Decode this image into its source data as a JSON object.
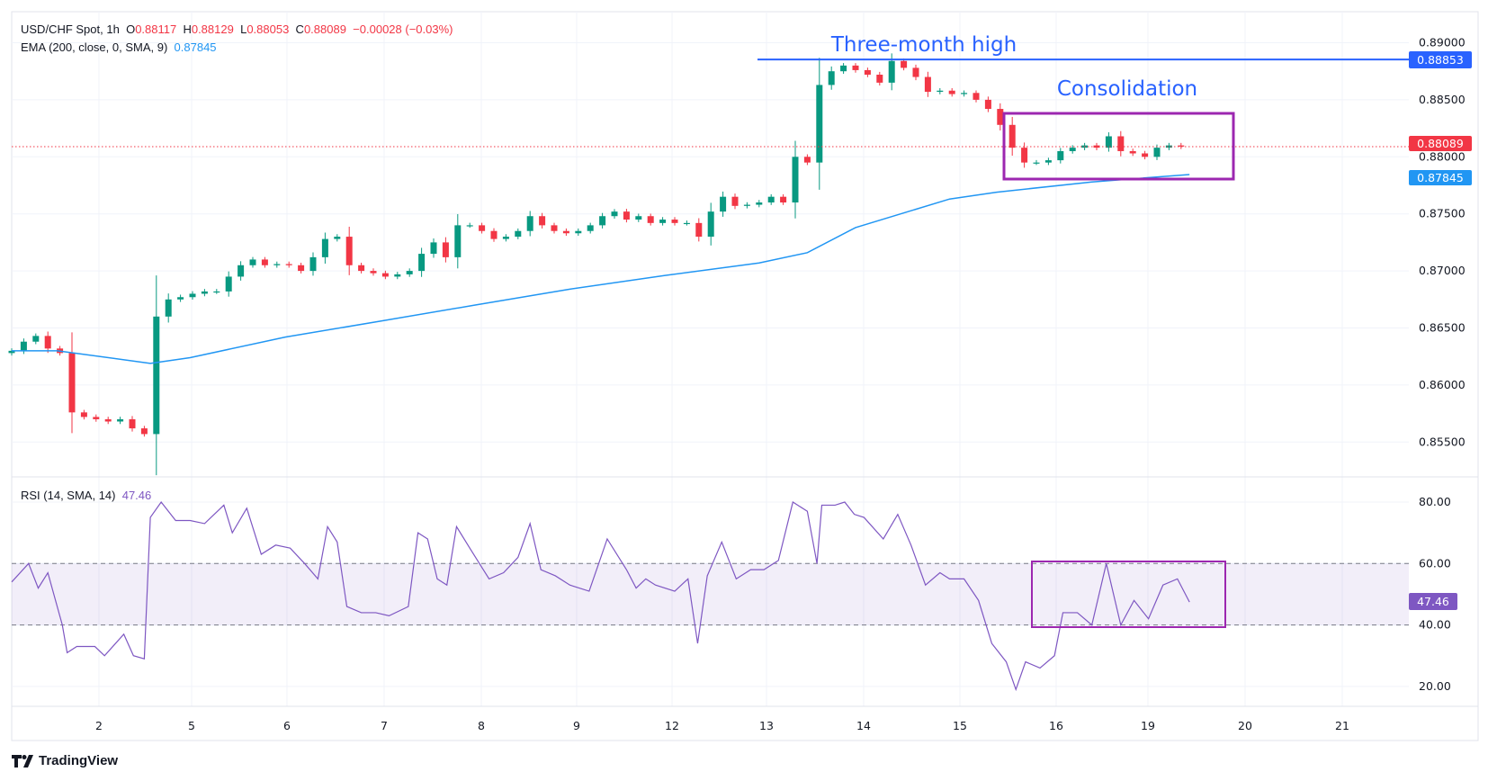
{
  "header": {
    "symbol": "USD/CHF Spot, 1h",
    "o_label": "O",
    "o": "0.88117",
    "h_label": "H",
    "h": "0.88129",
    "l_label": "L",
    "l": "0.88053",
    "c_label": "C",
    "c": "0.88089",
    "change": "−0.00028 (−0.03%)",
    "ema_label": "EMA (200, close, 0, SMA, 9)",
    "ema_value": "0.87845",
    "rsi_label": "RSI (14, SMA, 14)",
    "rsi_value": "47.46"
  },
  "annotations": {
    "high_text": "Three-month high",
    "consolidation_text": "Consolidation",
    "high_level": 0.88853
  },
  "tags": {
    "high": "0.88853",
    "last": "0.88089",
    "ema": "0.87845",
    "rsi": "47.46"
  },
  "colors": {
    "up": "#089981",
    "down": "#f23645",
    "ema": "#2196f3",
    "rsi": "#7e57c2",
    "annotation": "#2962ff",
    "box": "#9c27b0"
  },
  "branding": "TradingView",
  "chart_data": {
    "type": "candlestick",
    "title": "USD/CHF Spot, 1h",
    "x_tick_labels": [
      "2",
      "5",
      "6",
      "7",
      "8",
      "9",
      "12",
      "13",
      "14",
      "15",
      "16",
      "19",
      "20",
      "21"
    ],
    "price_ticks": [
      "0.89000",
      "0.88500",
      "0.88000",
      "0.87500",
      "0.87000",
      "0.86500",
      "0.86000",
      "0.85500"
    ],
    "price_ticks_values": [
      0.89,
      0.885,
      0.88,
      0.875,
      0.87,
      0.865,
      0.86,
      0.855
    ],
    "ylim": [
      0.8523,
      0.8922
    ],
    "first_open": 0.8628,
    "closes": [
      0.863,
      0.8638,
      0.8643,
      0.8632,
      0.8628,
      0.8576,
      0.8572,
      0.857,
      0.8568,
      0.857,
      0.8562,
      0.8557,
      0.866,
      0.8675,
      0.8677,
      0.868,
      0.8682,
      0.8682,
      0.8695,
      0.8705,
      0.871,
      0.8705,
      0.8706,
      0.8705,
      0.87,
      0.8712,
      0.8728,
      0.873,
      0.8705,
      0.87,
      0.8698,
      0.8695,
      0.8697,
      0.87,
      0.8715,
      0.8725,
      0.8712,
      0.874,
      0.874,
      0.8735,
      0.8728,
      0.873,
      0.8735,
      0.8748,
      0.874,
      0.8735,
      0.8733,
      0.8735,
      0.874,
      0.8748,
      0.8752,
      0.8745,
      0.8748,
      0.8742,
      0.8745,
      0.8742,
      0.8742,
      0.873,
      0.8752,
      0.8765,
      0.8757,
      0.8758,
      0.876,
      0.8765,
      0.876,
      0.88,
      0.8795,
      0.8863,
      0.8875,
      0.888,
      0.8876,
      0.8872,
      0.8865,
      0.8884,
      0.8878,
      0.887,
      0.8857,
      0.8858,
      0.8855,
      0.8856,
      0.885,
      0.8842,
      0.8828,
      0.8808,
      0.8795,
      0.8795,
      0.8797,
      0.8805,
      0.8808,
      0.881,
      0.8808,
      0.8818,
      0.8805,
      0.8803,
      0.88,
      0.8808,
      0.881,
      0.8809
    ],
    "ema200": [
      [
        0,
        0.863
      ],
      [
        3.8,
        0.863
      ],
      [
        11.5,
        0.8619
      ],
      [
        14.8,
        0.8624
      ],
      [
        22.7,
        0.8642
      ],
      [
        30.6,
        0.8656
      ],
      [
        38.4,
        0.867
      ],
      [
        46.3,
        0.8684
      ],
      [
        54.2,
        0.8696
      ],
      [
        62,
        0.8707
      ],
      [
        66,
        0.8716
      ],
      [
        70,
        0.8738
      ],
      [
        77.8,
        0.8763
      ],
      [
        81.7,
        0.8769
      ],
      [
        89.6,
        0.8778
      ],
      [
        97.7,
        0.87845
      ]
    ],
    "rsi": {
      "ticks": [
        "80.00",
        "60.00",
        "40.00",
        "20.00"
      ],
      "ticks_values": [
        80,
        60,
        40,
        20
      ],
      "band": [
        40,
        60
      ],
      "values": [
        [
          0,
          54
        ],
        [
          1.4,
          60
        ],
        [
          2.2,
          52
        ],
        [
          3.0,
          57
        ],
        [
          4.2,
          40
        ],
        [
          4.6,
          31
        ],
        [
          5.4,
          33
        ],
        [
          6.9,
          33
        ],
        [
          7.7,
          30
        ],
        [
          9.3,
          37
        ],
        [
          10.1,
          30
        ],
        [
          11.0,
          29
        ],
        [
          11.5,
          75
        ],
        [
          12.4,
          80
        ],
        [
          13.6,
          74
        ],
        [
          14.8,
          74
        ],
        [
          16.0,
          73
        ],
        [
          17.6,
          79
        ],
        [
          18.3,
          70
        ],
        [
          19.5,
          78
        ],
        [
          20.7,
          63
        ],
        [
          21.9,
          66
        ],
        [
          23.1,
          65
        ],
        [
          24.3,
          60
        ],
        [
          25.4,
          55
        ],
        [
          26.2,
          72
        ],
        [
          27.0,
          67
        ],
        [
          27.8,
          46
        ],
        [
          29.0,
          44
        ],
        [
          30.2,
          44
        ],
        [
          31.3,
          43
        ],
        [
          32.9,
          46
        ],
        [
          33.7,
          70
        ],
        [
          34.5,
          68
        ],
        [
          35.3,
          55
        ],
        [
          36.1,
          53
        ],
        [
          36.9,
          72
        ],
        [
          38.0,
          65
        ],
        [
          38.8,
          60
        ],
        [
          39.6,
          55
        ],
        [
          40.8,
          57
        ],
        [
          42.0,
          62
        ],
        [
          43.0,
          73
        ],
        [
          43.9,
          58
        ],
        [
          45.1,
          56
        ],
        [
          46.3,
          53
        ],
        [
          47.9,
          51
        ],
        [
          49.4,
          68
        ],
        [
          51.0,
          58
        ],
        [
          51.8,
          52
        ],
        [
          52.6,
          55
        ],
        [
          53.4,
          53
        ],
        [
          55.0,
          51
        ],
        [
          56.1,
          55
        ],
        [
          56.9,
          34
        ],
        [
          57.7,
          56
        ],
        [
          58.9,
          67
        ],
        [
          60.1,
          55
        ],
        [
          61.3,
          58
        ],
        [
          62.4,
          58
        ],
        [
          63.6,
          61
        ],
        [
          64.8,
          80
        ],
        [
          66.0,
          77
        ],
        [
          66.8,
          60
        ],
        [
          67.2,
          79
        ],
        [
          68.3,
          79
        ],
        [
          69.1,
          80
        ],
        [
          69.9,
          76
        ],
        [
          70.7,
          75
        ],
        [
          72.3,
          68
        ],
        [
          73.5,
          76
        ],
        [
          74.6,
          66
        ],
        [
          75.8,
          53
        ],
        [
          77.0,
          57
        ],
        [
          77.8,
          55
        ],
        [
          79.0,
          55
        ],
        [
          80.2,
          48
        ],
        [
          81.3,
          34
        ],
        [
          82.5,
          28
        ],
        [
          83.3,
          19
        ],
        [
          84.1,
          28
        ],
        [
          85.3,
          26
        ],
        [
          86.5,
          30
        ],
        [
          87.2,
          44
        ],
        [
          88.4,
          44
        ],
        [
          89.6,
          40
        ],
        [
          90.8,
          60
        ],
        [
          92.0,
          40
        ],
        [
          93.1,
          48
        ],
        [
          94.3,
          42
        ],
        [
          95.5,
          53
        ],
        [
          96.7,
          55
        ],
        [
          97.7,
          47.46
        ]
      ]
    }
  }
}
